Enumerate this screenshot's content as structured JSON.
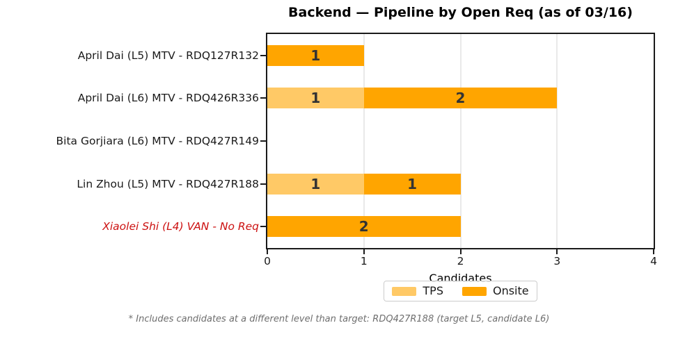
{
  "chart_data": {
    "type": "bar",
    "orientation": "horizontal",
    "stacked": true,
    "title": "Backend — Pipeline by Open Req (as of 03/16)",
    "xlabel": "Candidates",
    "xlim": [
      0,
      4
    ],
    "xticks": [
      "0",
      "1",
      "2",
      "3",
      "4"
    ],
    "gridlines_x": [
      1,
      2,
      3
    ],
    "grid": true,
    "legend_position": "below x-axis, centered",
    "categories": [
      "April Dai (L5) MTV - RDQ127R132",
      "April Dai (L6) MTV - RDQ426R336",
      "Bita Gorjiara (L6) MTV - RDQ427R149",
      "Lin Zhou (L5) MTV - RDQ427R188",
      "Xiaolei Shi (L4) VAN - No Req"
    ],
    "highlighted_category_index": 4,
    "series": [
      {
        "name": "TPS",
        "color": "#FFC966",
        "values": [
          0,
          1,
          0,
          1,
          0
        ]
      },
      {
        "name": "Onsite",
        "color": "#FFA500",
        "values": [
          1,
          2,
          0,
          1,
          2
        ]
      }
    ],
    "bar_value_labels_shown": true,
    "footnote": "* Includes candidates at a different level than target: RDQ427R188 (target L5, candidate L6)"
  },
  "colors": {
    "highlight_label": "#CC1111",
    "bar_value_label": "#333333",
    "grid_line": "#E9E9E9",
    "axis_spine": "#1A1A1A",
    "tps": "#FFC966",
    "onsite": "#FFA500",
    "footnote_text": "#6E6E6E"
  }
}
